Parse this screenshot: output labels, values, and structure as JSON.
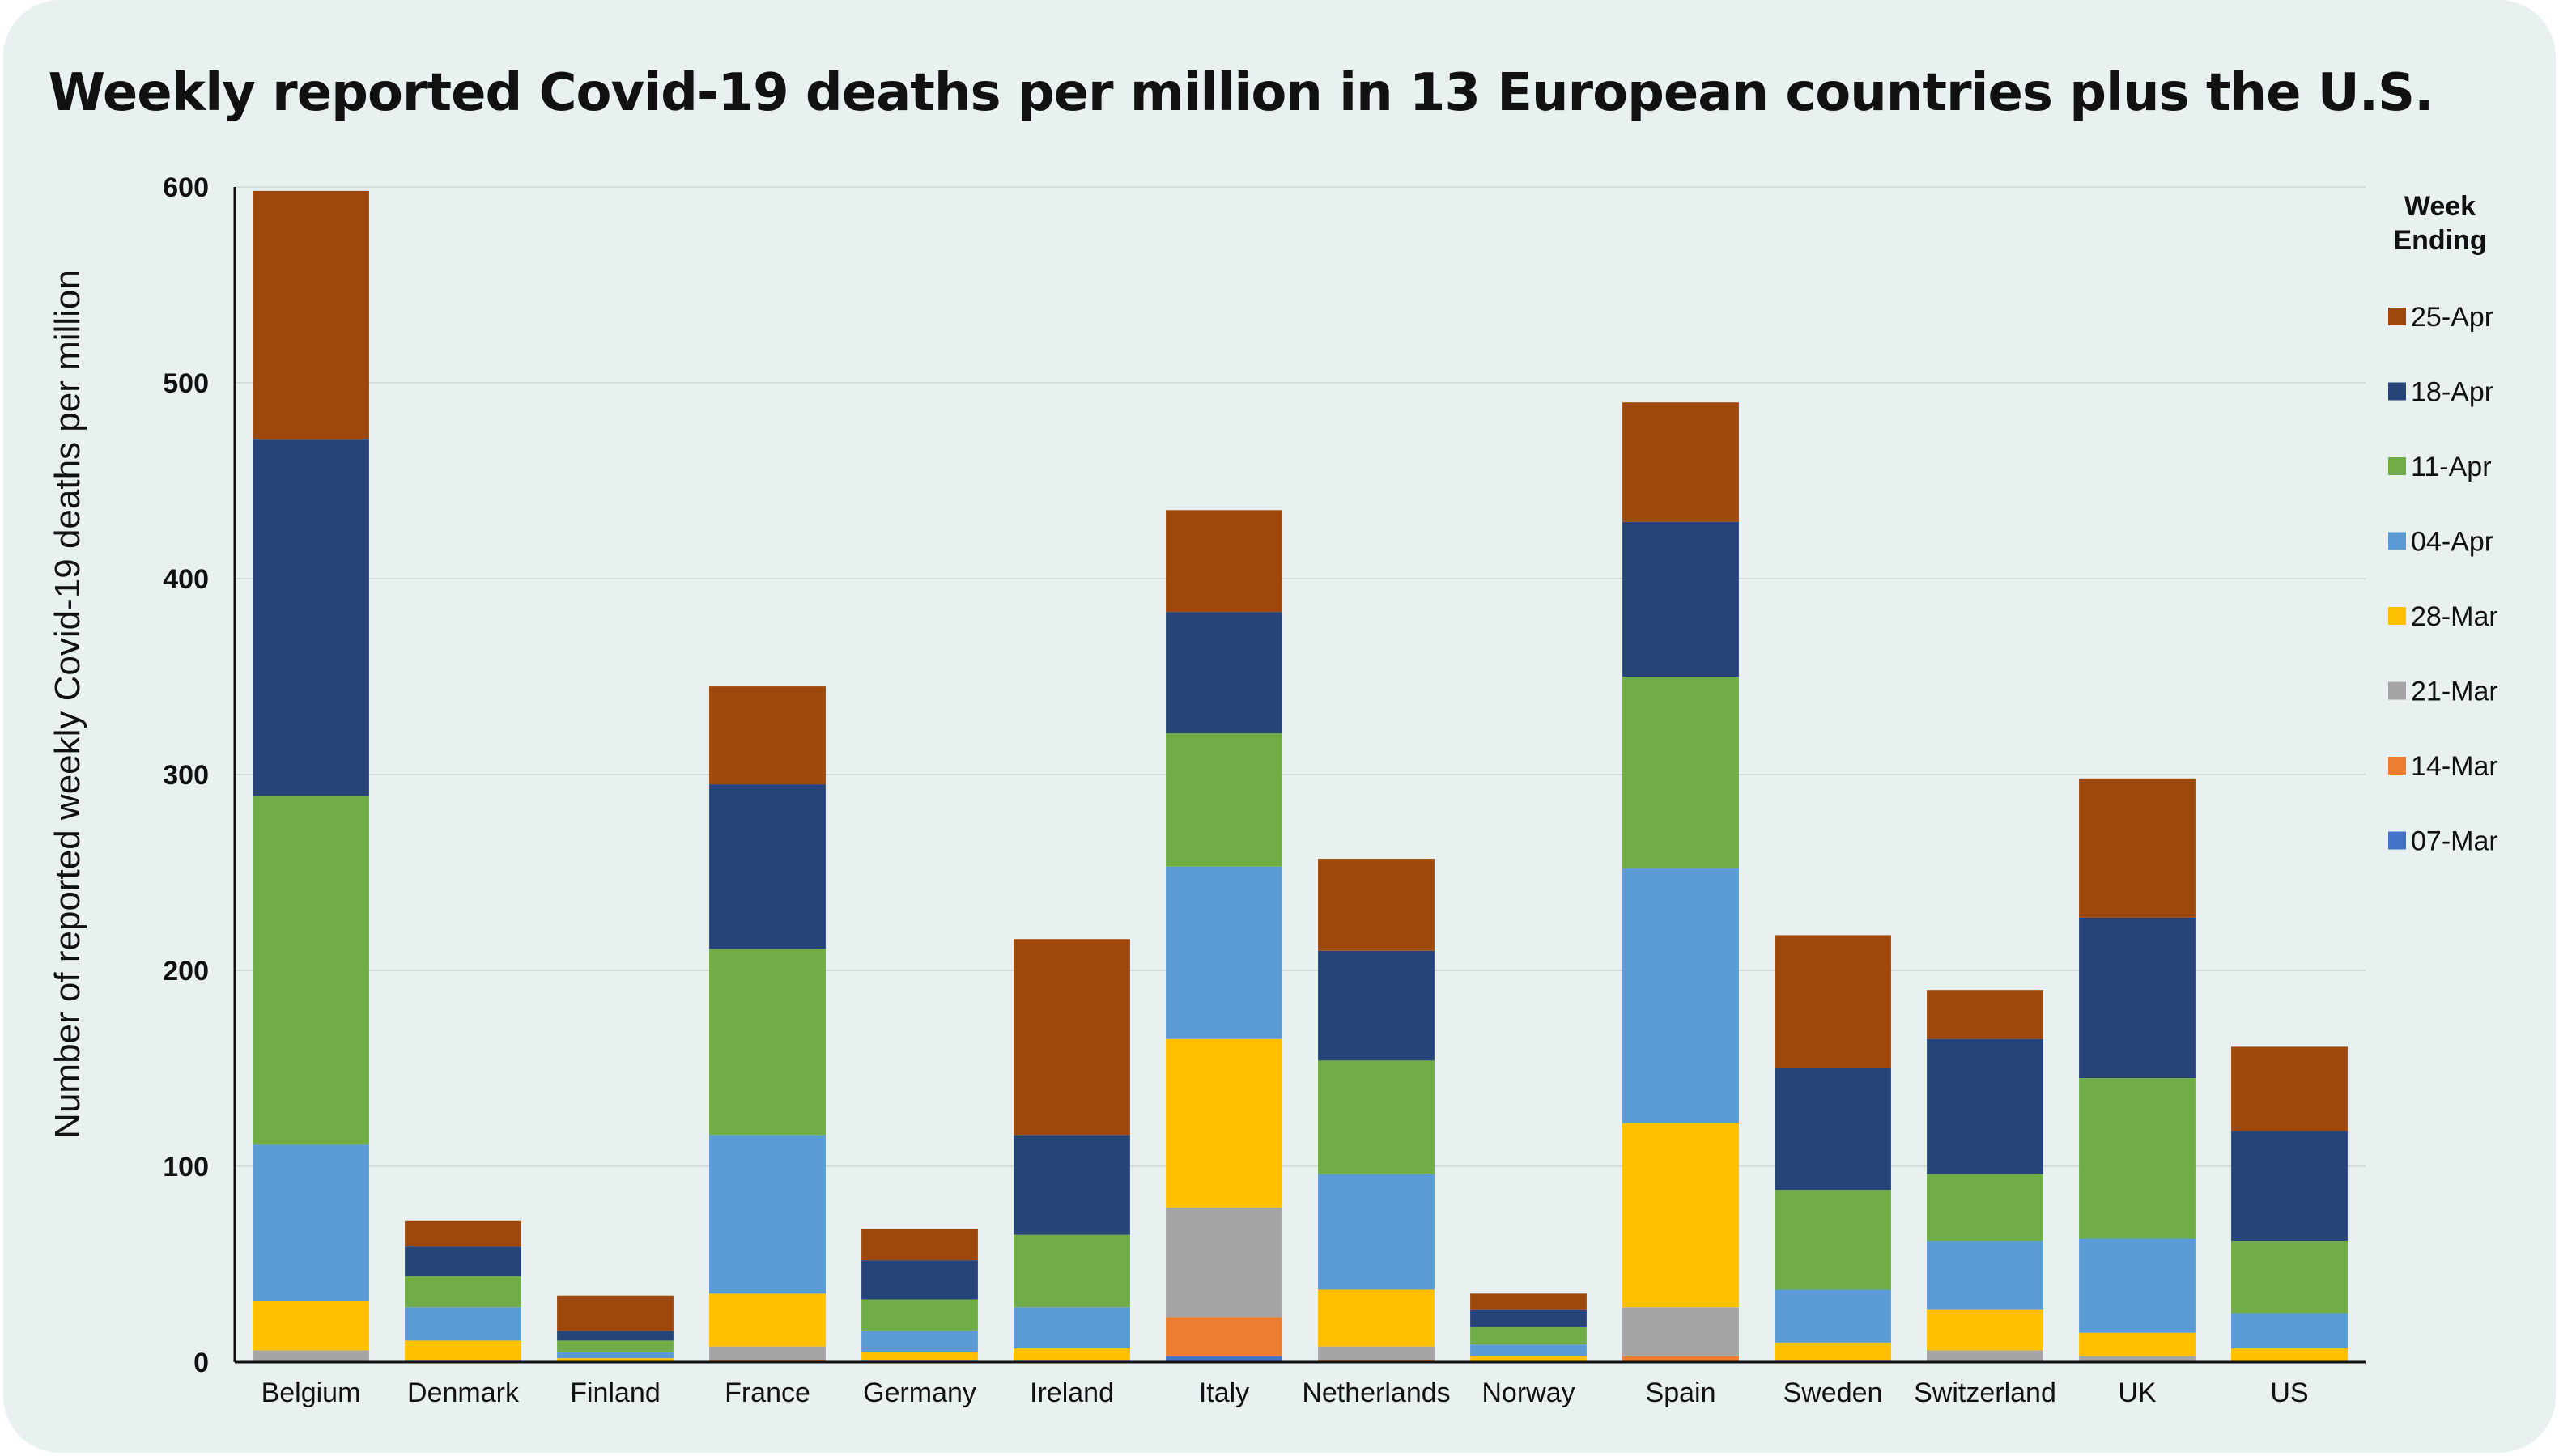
{
  "chart_data": {
    "type": "bar",
    "stacked": true,
    "title": "Weekly reported Covid-19 deaths per million in 13 European countries plus the U.S.",
    "ylabel": "Number of reported weekly Covid-19 deaths per million",
    "xlabel": "",
    "ylim": [
      0,
      600
    ],
    "yticks": [
      0,
      100,
      200,
      300,
      400,
      500,
      600
    ],
    "grid": true,
    "legend_title": "Week Ending",
    "legend_position": "right",
    "categories": [
      "Belgium",
      "Denmark",
      "Finland",
      "France",
      "Germany",
      "Ireland",
      "Italy",
      "Netherlands",
      "Norway",
      "Spain",
      "Sweden",
      "Switzerland",
      "UK",
      "US"
    ],
    "series": [
      {
        "name": "07-Mar",
        "color": "#4472c4",
        "values": [
          0,
          0,
          0,
          0,
          0,
          0,
          3,
          0,
          0,
          0,
          0,
          0,
          0,
          0
        ]
      },
      {
        "name": "14-Mar",
        "color": "#ed7d31",
        "values": [
          0,
          0,
          0,
          1,
          0,
          0,
          20,
          1,
          0,
          3,
          0,
          0,
          0,
          0
        ]
      },
      {
        "name": "21-Mar",
        "color": "#a5a5a5",
        "values": [
          6,
          1,
          0,
          7,
          1,
          1,
          56,
          7,
          0,
          25,
          1,
          6,
          3,
          0
        ]
      },
      {
        "name": "28-Mar",
        "color": "#ffc000",
        "values": [
          25,
          10,
          2,
          27,
          4,
          6,
          86,
          29,
          3,
          94,
          9,
          21,
          12,
          7
        ]
      },
      {
        "name": "04-Apr",
        "color": "#5b9bd5",
        "values": [
          80,
          17,
          3,
          81,
          11,
          21,
          88,
          59,
          6,
          130,
          27,
          35,
          48,
          18
        ]
      },
      {
        "name": "11-Apr",
        "color": "#70ad47",
        "values": [
          178,
          16,
          6,
          95,
          16,
          37,
          68,
          58,
          9,
          98,
          51,
          34,
          82,
          37
        ]
      },
      {
        "name": "18-Apr",
        "color": "#264478",
        "values": [
          182,
          15,
          5,
          84,
          20,
          51,
          62,
          56,
          9,
          79,
          62,
          69,
          82,
          56
        ]
      },
      {
        "name": "25-Apr",
        "color": "#9e480e",
        "values": [
          127,
          13,
          18,
          50,
          16,
          100,
          52,
          47,
          8,
          61,
          68,
          25,
          71,
          43
        ]
      }
    ]
  }
}
